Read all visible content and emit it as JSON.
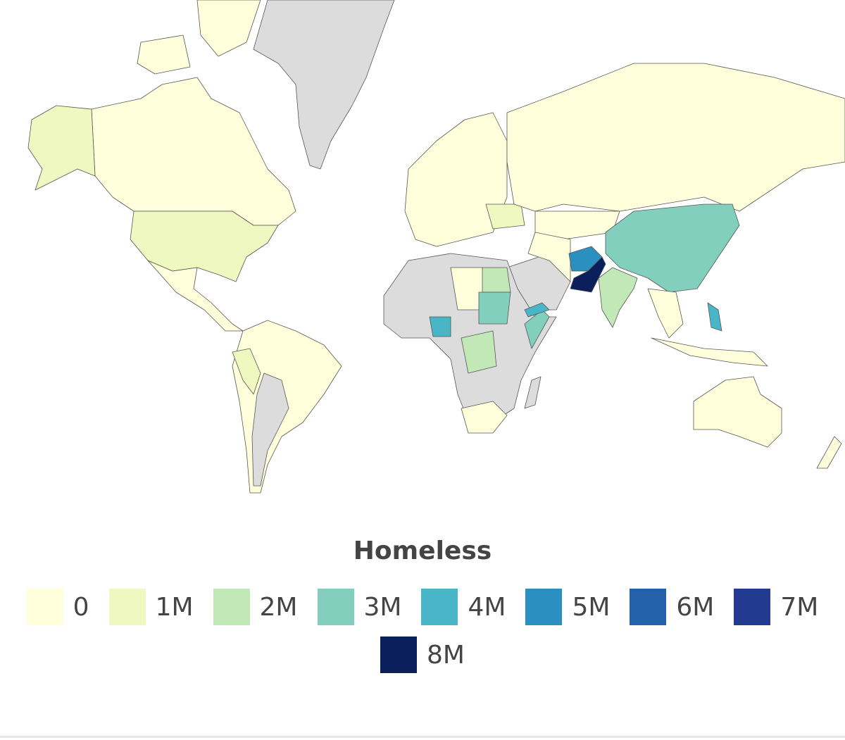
{
  "legend": {
    "title": "Homeless",
    "items": [
      {
        "label": "0",
        "color": "#ffffdb"
      },
      {
        "label": "1M",
        "color": "#eef8c0"
      },
      {
        "label": "2M",
        "color": "#c2e8b8"
      },
      {
        "label": "3M",
        "color": "#82cfbd"
      },
      {
        "label": "4M",
        "color": "#48b6c6"
      },
      {
        "label": "5M",
        "color": "#2b8fc0"
      },
      {
        "label": "6M",
        "color": "#2361ab"
      },
      {
        "label": "7M",
        "color": "#223a8f"
      },
      {
        "label": "8M",
        "color": "#0a1f5c"
      }
    ]
  }
}
